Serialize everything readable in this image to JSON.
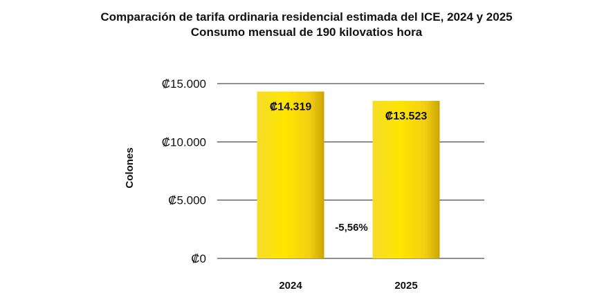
{
  "chart_data": {
    "type": "bar",
    "title": "Comparación de tarifa ordinaria residencial estimada del ICE, 2024 y 2025",
    "subtitle": "Consumo mensual de 190 kilovatios hora",
    "ylabel": "Colones",
    "xlabel": "",
    "categories": [
      "2024",
      "2025"
    ],
    "values": [
      14319,
      13523
    ],
    "value_labels": [
      "₡14.319",
      "₡13.523"
    ],
    "ylim": [
      0,
      15000
    ],
    "yticks": [
      0,
      5000,
      10000,
      15000
    ],
    "ytick_labels": [
      "₡0",
      "₡5.000",
      "₡10.000",
      "₡15.000"
    ],
    "annotation": "-5,56%",
    "grid": "horizontal",
    "bar_color": "#f7d417",
    "bar_shadow_color": "#c9a600"
  }
}
